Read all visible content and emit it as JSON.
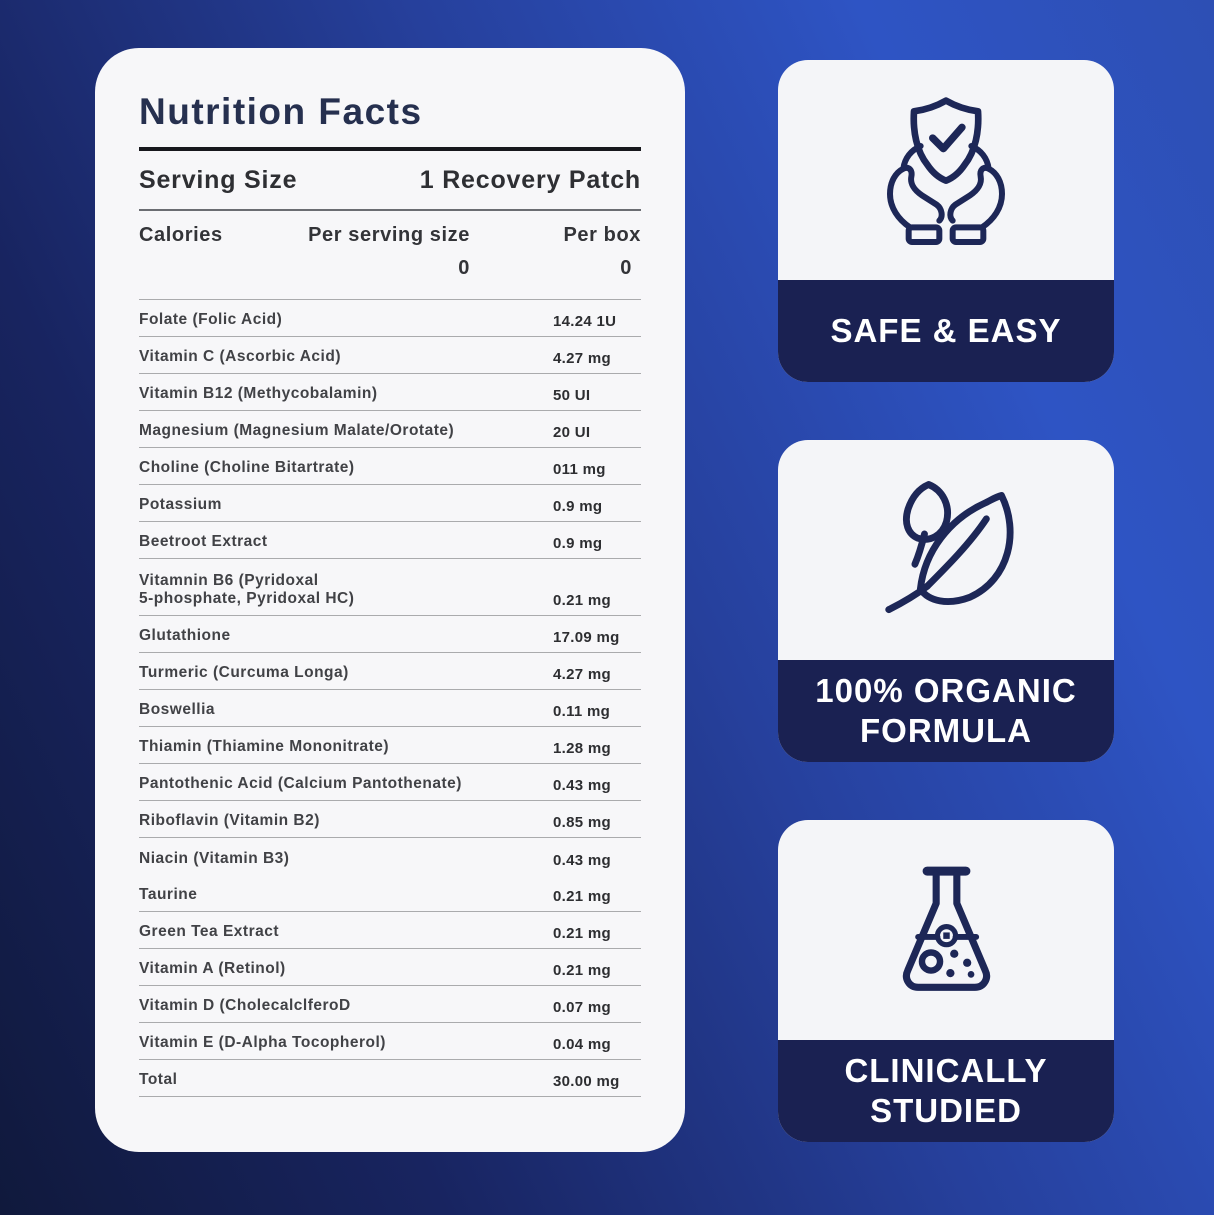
{
  "panel": {
    "title": "Nutrition Facts",
    "serving_size_label": "Serving Size",
    "serving_size_value": "1 Recovery Patch",
    "calories_label": "Calories",
    "per_serving_header": "Per serving size",
    "per_box_header": "Per box",
    "per_serving_calories": "0",
    "per_box_calories": "0",
    "rows": [
      {
        "label": "Folate (Folic Acid)",
        "value": "14.24 1U",
        "divider": true
      },
      {
        "label": "Vitamin C (Ascorbic Acid)",
        "value": "4.27 mg",
        "divider": true
      },
      {
        "label": "Vitamin B12 (Methycobalamin)",
        "value": "50 UI",
        "divider": true
      },
      {
        "label": "Magnesium (Magnesium Malate/Orotate)",
        "value": "20 UI",
        "divider": true
      },
      {
        "label": "Choline (Choline Bitartrate)",
        "value": "011 mg",
        "divider": true
      },
      {
        "label": "Potassium",
        "value": "0.9 mg",
        "divider": true
      },
      {
        "label": "Beetroot Extract",
        "value": "0.9 mg",
        "divider": true
      },
      {
        "label": "Vitamnin B6 (Pyridoxal\n5-phosphate, Pyridoxal HC)",
        "value": "0.21 mg",
        "divider": true
      },
      {
        "label": "Glutathione",
        "value": "17.09 mg",
        "divider": true
      },
      {
        "label": "Turmeric (Curcuma Longa)",
        "value": "4.27 mg",
        "divider": true
      },
      {
        "label": "Boswellia",
        "value": "0.11 mg",
        "divider": true
      },
      {
        "label": "Thiamin (Thiamine Mononitrate)",
        "value": "1.28 mg",
        "divider": true
      },
      {
        "label": "Pantothenic Acid (Calcium Pantothenate)",
        "value": "0.43 mg",
        "divider": true
      },
      {
        "label": "Riboflavin (Vitamin B2)",
        "value": "0.85 mg",
        "divider": true
      },
      {
        "label": "Niacin (Vitamin B3)",
        "value": "0.43 mg",
        "divider": false
      },
      {
        "label": "Taurine",
        "value": "0.21 mg",
        "divider": true
      },
      {
        "label": "Green Tea Extract",
        "value": "0.21 mg",
        "divider": true
      },
      {
        "label": "Vitamin A (Retinol)",
        "value": "0.21 mg",
        "divider": true
      },
      {
        "label": "Vitamin D (CholecalclferoD",
        "value": "0.07 mg",
        "divider": true
      },
      {
        "label": "Vitamin E (D-Alpha Tocopherol)",
        "value": "0.04 mg",
        "divider": true
      },
      {
        "label": "Total",
        "value": "30.00 mg",
        "divider": true
      }
    ]
  },
  "badges": [
    {
      "label": "SAFE & EASY",
      "icon": "hands-shield-icon"
    },
    {
      "label": "100% ORGANIC\nFORMULA",
      "icon": "organic-leaf-icon"
    },
    {
      "label": "CLINICALLY\nSTUDIED",
      "icon": "lab-flask-icon"
    }
  ],
  "colors": {
    "background_gradient": [
      "#10193c",
      "#182460",
      "#26409c",
      "#2e54c4",
      "#2d4fb4"
    ],
    "card_background": "#f7f7f9",
    "badge_background": "#f4f5f8",
    "badge_band": "#1a2152",
    "icon_stroke": "#1d2757",
    "title_text": "#26304f",
    "divider": "#aaabad"
  }
}
